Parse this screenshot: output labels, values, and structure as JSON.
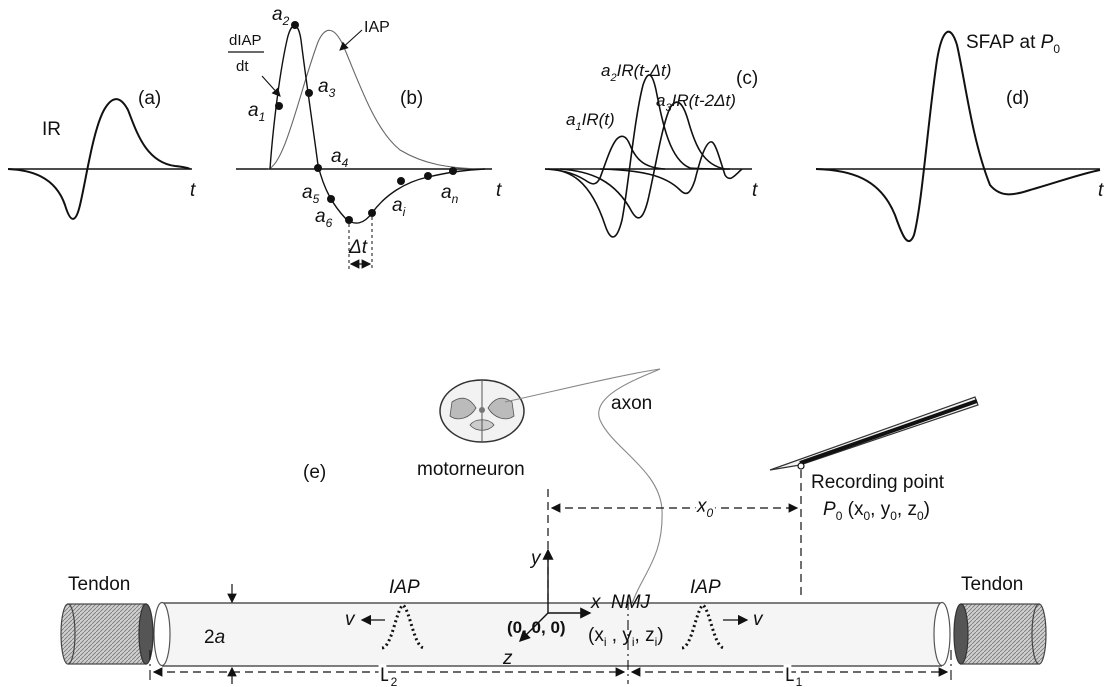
{
  "panel_a": {
    "tag": "(a)",
    "curve_label": "IR",
    "t": "t"
  },
  "panel_b": {
    "tag": "(b)",
    "iap": "IAP",
    "derivative_num": "dIAP",
    "derivative_den": "dt",
    "t": "t",
    "samples": [
      "a1",
      "a2",
      "a3",
      "a4",
      "a5",
      "a6",
      "ai",
      "an"
    ],
    "delta": "Δt"
  },
  "panel_c": {
    "tag": "(c)",
    "l1": "a1IR(t)",
    "l2": "a2IR(t-Δt)",
    "l3": "a3IR(t-2Δt)",
    "t": "t"
  },
  "panel_d": {
    "tag": "(d)",
    "label": "SFAP at P0",
    "t": "t"
  },
  "panel_e": {
    "tag": "(e)",
    "motorneuron": "motorneuron",
    "axon": "axon",
    "recording_point": "Recording point",
    "p0_coords": "P0 (x0, y0, z0)",
    "x0": "x0",
    "y": "y",
    "x": "x",
    "z": "z",
    "nmj": "NMJ",
    "origin": "(0, 0, 0)",
    "nmj_coords": "(xi , yi, zi)",
    "iap_left": "IAP",
    "iap_right": "IAP",
    "v_left": "v",
    "v_right": "v",
    "radius": "2a",
    "tendon_left": "Tendon",
    "tendon_right": "Tendon",
    "L2": "L2",
    "L1": "L1"
  }
}
